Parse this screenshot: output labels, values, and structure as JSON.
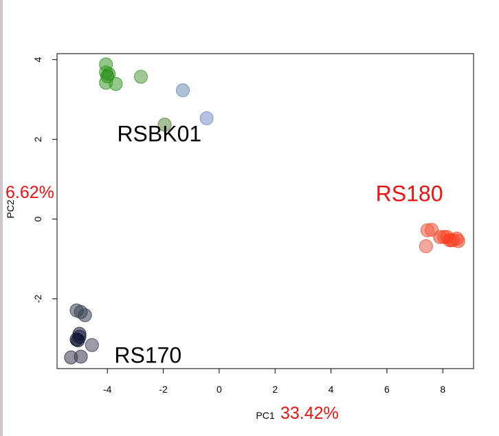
{
  "chart_data": {
    "type": "scatter",
    "xlabel": "PC1",
    "ylabel": "PC2",
    "x_variance_label": "33.42%",
    "y_variance_label": "6.62%",
    "xlim": [
      -5.8,
      9.1
    ],
    "ylim": [
      -3.75,
      4.15
    ],
    "x_ticks": [
      "-4",
      "-2",
      "0",
      "2",
      "4",
      "6",
      "8"
    ],
    "y_ticks": [
      "-2",
      "0",
      "2",
      "4"
    ],
    "grid": false,
    "points": [
      {
        "x": -4.05,
        "y": 3.88,
        "color": "#3b9a2a"
      },
      {
        "x": -4.05,
        "y": 3.68,
        "color": "#3b9a2a"
      },
      {
        "x": -3.95,
        "y": 3.64,
        "color": "#3b9a2a"
      },
      {
        "x": -4.0,
        "y": 3.58,
        "color": "#1f8a10"
      },
      {
        "x": -4.05,
        "y": 3.42,
        "color": "#3b9a2a"
      },
      {
        "x": -3.7,
        "y": 3.39,
        "color": "#3b9a2a"
      },
      {
        "x": -2.8,
        "y": 3.57,
        "color": "#4f9a3c"
      },
      {
        "x": -1.3,
        "y": 3.23,
        "color": "#6a90b4"
      },
      {
        "x": -0.45,
        "y": 2.53,
        "color": "#7a8fc8"
      },
      {
        "x": -1.95,
        "y": 2.37,
        "color": "#5f8a3e"
      },
      {
        "x": 7.6,
        "y": -0.27,
        "color": "#f05a42"
      },
      {
        "x": 7.45,
        "y": -0.28,
        "color": "#f05a42"
      },
      {
        "x": 7.9,
        "y": -0.45,
        "color": "#f24a2e"
      },
      {
        "x": 8.05,
        "y": -0.45,
        "color": "#f24a2e"
      },
      {
        "x": 8.15,
        "y": -0.45,
        "color": "#f24a2e"
      },
      {
        "x": 8.5,
        "y": -0.49,
        "color": "#f24a2e"
      },
      {
        "x": 8.35,
        "y": -0.53,
        "color": "#ff3a1a"
      },
      {
        "x": 8.25,
        "y": -0.53,
        "color": "#ff3a1a"
      },
      {
        "x": 8.55,
        "y": -0.55,
        "color": "#f24a2e"
      },
      {
        "x": 7.4,
        "y": -0.68,
        "color": "#e8604a"
      },
      {
        "x": -5.1,
        "y": -2.29,
        "color": "#3a4654"
      },
      {
        "x": -4.95,
        "y": -2.33,
        "color": "#3a4654"
      },
      {
        "x": -4.8,
        "y": -2.41,
        "color": "#3a4654"
      },
      {
        "x": -5.0,
        "y": -2.88,
        "color": "#1a2038"
      },
      {
        "x": -5.0,
        "y": -2.95,
        "color": "#1a2038"
      },
      {
        "x": -5.1,
        "y": -3.02,
        "color": "#0c1230"
      },
      {
        "x": -5.05,
        "y": -3.04,
        "color": "#0c1230"
      },
      {
        "x": -4.55,
        "y": -3.16,
        "color": "#4a4860"
      },
      {
        "x": -5.3,
        "y": -3.47,
        "color": "#3a3a50"
      },
      {
        "x": -4.95,
        "y": -3.45,
        "color": "#3a3a50"
      }
    ],
    "annotations": [
      {
        "text": "RSBK01",
        "x": -3.65,
        "y": 1.95,
        "color": "#000000"
      },
      {
        "text": "RS180",
        "x": 5.6,
        "y": 0.45,
        "color": "#ee1111"
      },
      {
        "text": "RS170",
        "x": -3.75,
        "y": -3.6,
        "color": "#000000"
      }
    ]
  }
}
